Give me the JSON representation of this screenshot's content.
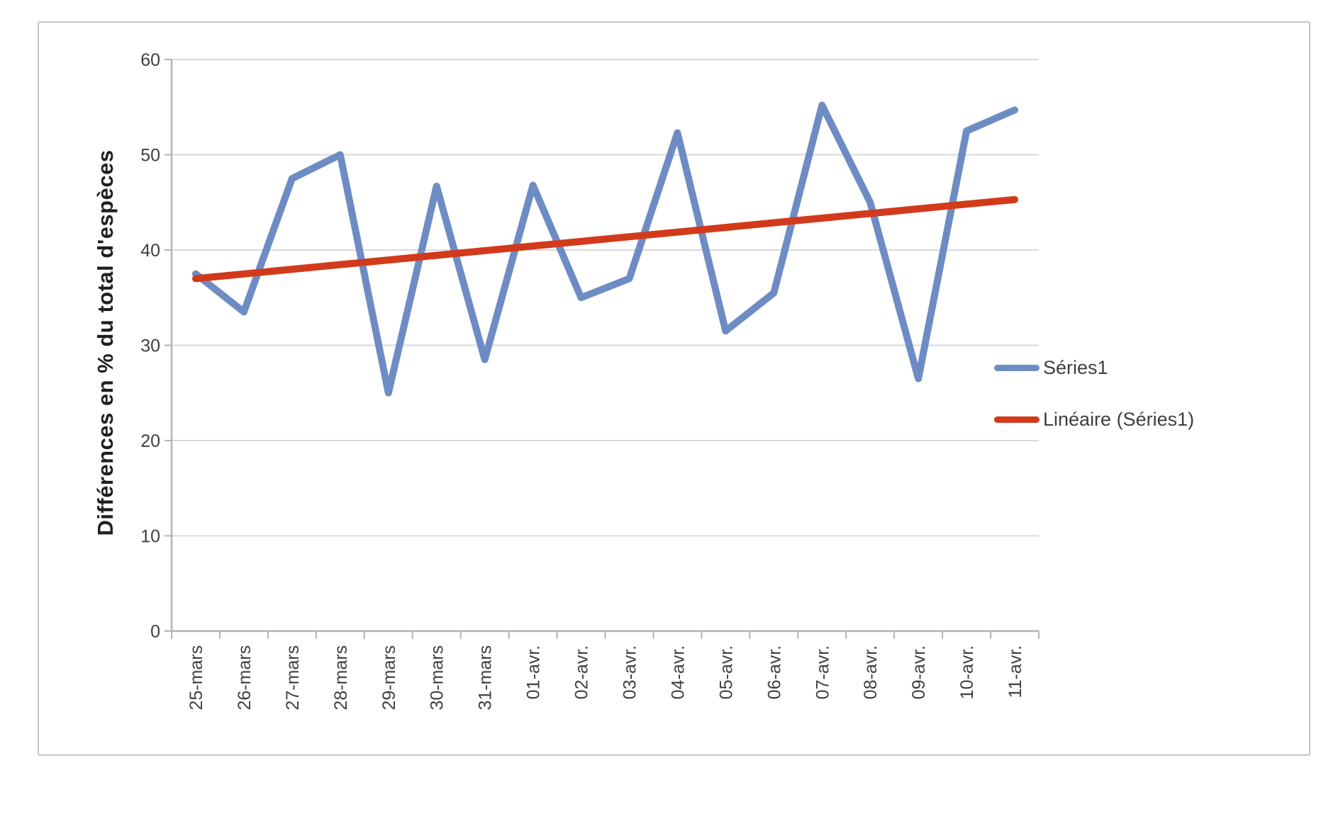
{
  "chart_data": {
    "type": "line",
    "title": "",
    "xlabel": "",
    "ylabel": "Différences en % du total d'espèces",
    "ylim": [
      0,
      60
    ],
    "yticks": [
      0,
      10,
      20,
      30,
      40,
      50,
      60
    ],
    "grid": true,
    "legend_position": "right",
    "categories": [
      "25-mars",
      "26-mars",
      "27-mars",
      "28-mars",
      "29-mars",
      "30-mars",
      "31-mars",
      "01-avr.",
      "02-avr.",
      "03-avr.",
      "04-avr.",
      "05-avr.",
      "06-avr.",
      "07-avr.",
      "08-avr.",
      "09-avr.",
      "10-avr.",
      "11-avr."
    ],
    "series": [
      {
        "name": "Séries1",
        "type": "line",
        "color": "#6e8cc4",
        "values": [
          37.5,
          33.5,
          47.5,
          50,
          25,
          46.7,
          28.5,
          46.8,
          35,
          37,
          52.3,
          31.5,
          35.5,
          55.2,
          45,
          26.5,
          52.5,
          54.7
        ]
      },
      {
        "name": "Linéaire (Séries1)",
        "type": "trendline",
        "color": "#d23a1c",
        "trend": {
          "start": 37.0,
          "end": 45.3
        }
      }
    ]
  },
  "colors": {
    "grid": "#d9d9d9",
    "axis": "#b3b3b3",
    "tick_text": "#3f3f3f",
    "frame_border": "#c6c6c6",
    "background": "#ffffff"
  }
}
